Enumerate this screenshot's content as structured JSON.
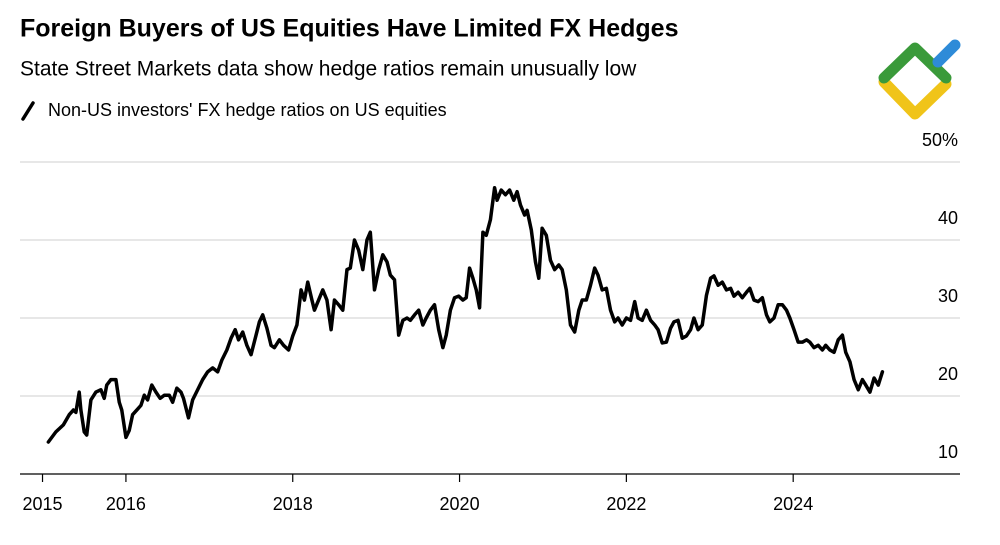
{
  "chart_data": {
    "type": "line",
    "title": "Foreign Buyers of US Equities Have Limited FX Hedges",
    "subtitle": "State Street Markets data show hedge ratios remain unusually low",
    "x": [
      2015.07,
      2015.16,
      2015.25,
      2015.32,
      2015.37,
      2015.4,
      2015.44,
      2015.46,
      2015.5,
      2015.53,
      2015.58,
      2015.64,
      2015.7,
      2015.74,
      2015.77,
      2015.82,
      2015.88,
      2015.92,
      2015.95,
      2016.0,
      2016.04,
      2016.08,
      2016.13,
      2016.18,
      2016.22,
      2016.26,
      2016.31,
      2016.36,
      2016.41,
      2016.46,
      2016.52,
      2016.56,
      2016.61,
      2016.66,
      2016.69,
      2016.75,
      2016.8,
      2016.86,
      2016.92,
      2016.98,
      2017.04,
      2017.1,
      2017.15,
      2017.21,
      2017.26,
      2017.31,
      2017.35,
      2017.4,
      2017.45,
      2017.5,
      2017.56,
      2017.6,
      2017.64,
      2017.69,
      2017.74,
      2017.78,
      2017.84,
      2017.89,
      2017.95,
      2018.0,
      2018.05,
      2018.1,
      2018.14,
      2018.18,
      2018.23,
      2018.26,
      2018.31,
      2018.36,
      2018.41,
      2018.46,
      2018.5,
      2018.55,
      2018.6,
      2018.65,
      2018.69,
      2018.74,
      2018.79,
      2018.84,
      2018.89,
      2018.93,
      2018.98,
      2019.03,
      2019.08,
      2019.13,
      2019.17,
      2019.22,
      2019.27,
      2019.32,
      2019.37,
      2019.41,
      2019.46,
      2019.51,
      2019.56,
      2019.6,
      2019.65,
      2019.7,
      2019.75,
      2019.8,
      2019.84,
      2019.89,
      2019.94,
      2019.99,
      2020.04,
      2020.08,
      2020.12,
      2020.16,
      2020.2,
      2020.24,
      2020.28,
      2020.32,
      2020.37,
      2020.42,
      2020.45,
      2020.5,
      2020.55,
      2020.6,
      2020.65,
      2020.69,
      2020.73,
      2020.78,
      2020.81,
      2020.86,
      2020.91,
      2020.95,
      2020.99,
      2021.04,
      2021.09,
      2021.14,
      2021.19,
      2021.23,
      2021.28,
      2021.33,
      2021.38,
      2021.43,
      2021.47,
      2021.52,
      2021.57,
      2021.62,
      2021.66,
      2021.71,
      2021.76,
      2021.81,
      2021.86,
      2021.9,
      2021.95,
      2022.0,
      2022.05,
      2022.1,
      2022.14,
      2022.19,
      2022.24,
      2022.29,
      2022.34,
      2022.38,
      2022.43,
      2022.48,
      2022.53,
      2022.57,
      2022.62,
      2022.67,
      2022.72,
      2022.77,
      2022.81,
      2022.86,
      2022.91,
      2022.96,
      2023.01,
      2023.05,
      2023.1,
      2023.15,
      2023.2,
      2023.25,
      2023.29,
      2023.34,
      2023.39,
      2023.44,
      2023.48,
      2023.53,
      2023.58,
      2023.63,
      2023.68,
      2023.72,
      2023.77,
      2023.82,
      2023.87,
      2023.92,
      2023.96,
      2024.01,
      2024.06,
      2024.11,
      2024.16,
      2024.2,
      2024.25,
      2024.3,
      2024.35,
      2024.39,
      2024.44,
      2024.49,
      2024.54,
      2024.59,
      2024.63,
      2024.68,
      2024.73,
      2024.78,
      2024.83,
      2024.87,
      2024.92,
      2024.97,
      2025.02,
      2025.07
    ],
    "series": [
      {
        "name": "Non-US investors' FX hedge ratios on US equities",
        "color": "#000000",
        "values": [
          14.1,
          15.4,
          16.3,
          17.6,
          18.2,
          17.9,
          20.5,
          18.2,
          15.4,
          15.0,
          19.5,
          20.5,
          20.8,
          19.7,
          21.4,
          22.1,
          22.1,
          19.2,
          18.2,
          14.7,
          15.6,
          17.6,
          18.2,
          18.8,
          20.1,
          19.5,
          21.4,
          20.5,
          19.7,
          20.1,
          20.1,
          19.2,
          21.0,
          20.5,
          19.7,
          17.2,
          19.5,
          20.8,
          22.1,
          23.1,
          23.6,
          23.1,
          24.6,
          25.9,
          27.4,
          28.5,
          27.2,
          28.2,
          26.5,
          25.3,
          27.8,
          29.5,
          30.4,
          28.7,
          26.5,
          26.2,
          27.2,
          26.5,
          25.9,
          27.7,
          29.1,
          33.6,
          32.3,
          34.6,
          32.3,
          31.0,
          32.3,
          33.6,
          32.3,
          28.5,
          32.3,
          31.7,
          31.0,
          36.2,
          36.4,
          40.0,
          38.7,
          36.2,
          40.0,
          41.0,
          33.6,
          36.2,
          38.1,
          37.2,
          35.5,
          34.9,
          27.8,
          29.7,
          30.0,
          29.7,
          30.4,
          31.0,
          29.1,
          30.0,
          31.0,
          31.7,
          28.5,
          26.2,
          27.8,
          31.0,
          32.6,
          32.8,
          32.3,
          32.6,
          36.4,
          35.1,
          33.6,
          31.3,
          41.0,
          40.6,
          42.6,
          46.7,
          45.1,
          46.4,
          45.8,
          46.4,
          45.1,
          46.2,
          44.5,
          43.2,
          43.8,
          41.3,
          37.2,
          35.1,
          41.5,
          40.6,
          37.4,
          36.2,
          36.8,
          36.2,
          33.6,
          29.1,
          28.2,
          31.0,
          32.3,
          32.3,
          34.2,
          36.4,
          35.5,
          33.6,
          33.8,
          31.0,
          29.5,
          30.0,
          29.1,
          30.0,
          29.7,
          32.1,
          30.0,
          29.7,
          31.0,
          29.7,
          29.1,
          28.5,
          26.8,
          26.9,
          28.7,
          29.5,
          29.7,
          27.4,
          27.7,
          28.5,
          30.0,
          28.5,
          29.1,
          32.9,
          35.1,
          35.4,
          34.2,
          34.6,
          33.6,
          33.8,
          32.8,
          33.3,
          32.6,
          33.3,
          33.8,
          32.3,
          32.1,
          32.6,
          30.4,
          29.5,
          30.0,
          31.7,
          31.7,
          31.0,
          30.0,
          28.5,
          26.9,
          26.9,
          27.2,
          26.9,
          26.2,
          26.5,
          25.9,
          26.5,
          25.9,
          25.6,
          27.2,
          27.8,
          25.6,
          24.4,
          22.1,
          20.8,
          22.1,
          21.4,
          20.5,
          22.3,
          21.4,
          23.1
        ]
      }
    ],
    "xlim": [
      2014.73,
      2026.0
    ],
    "xticks": [
      2015,
      2016,
      2018,
      2020,
      2022,
      2024
    ],
    "ylim": [
      10,
      50
    ],
    "yticks": [
      10,
      20,
      30,
      40,
      {
        "value": 50,
        "label": "50%"
      }
    ],
    "grid": true
  }
}
